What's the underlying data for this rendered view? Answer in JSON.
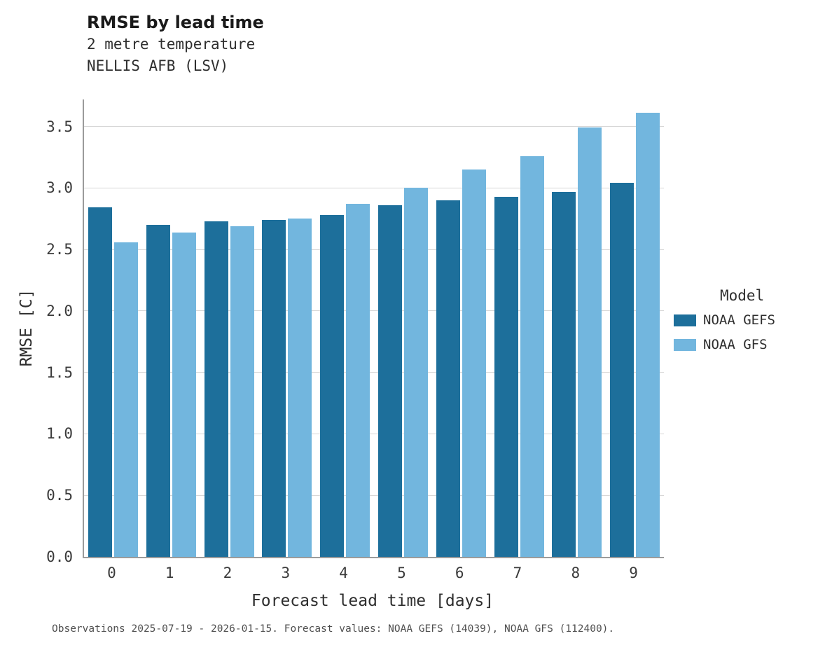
{
  "chart_data": {
    "type": "bar",
    "title": "RMSE by lead time",
    "subtitle": "2 metre temperature",
    "subtitle2": "NELLIS AFB (LSV)",
    "xlabel": "Forecast lead time [days]",
    "ylabel": "RMSE [C]",
    "categories": [
      "0",
      "1",
      "2",
      "3",
      "4",
      "5",
      "6",
      "7",
      "8",
      "9"
    ],
    "series": [
      {
        "name": "NOAA GEFS",
        "color": "#1d6f9b",
        "values": [
          2.84,
          2.7,
          2.73,
          2.74,
          2.78,
          2.86,
          2.9,
          2.93,
          2.97,
          3.04
        ]
      },
      {
        "name": "NOAA GFS",
        "color": "#72b6de",
        "values": [
          2.56,
          2.64,
          2.69,
          2.75,
          2.87,
          3.0,
          3.15,
          3.26,
          3.49,
          3.61
        ]
      }
    ],
    "yticks": [
      0.0,
      0.5,
      1.0,
      1.5,
      2.0,
      2.5,
      3.0,
      3.5
    ],
    "ylim": [
      0,
      3.72
    ],
    "grid": true,
    "legend_title": "Model",
    "legend_position": "right",
    "caption": "Observations 2025-07-19 - 2026-01-15. Forecast values: NOAA GEFS (14039), NOAA GFS (112400)."
  }
}
